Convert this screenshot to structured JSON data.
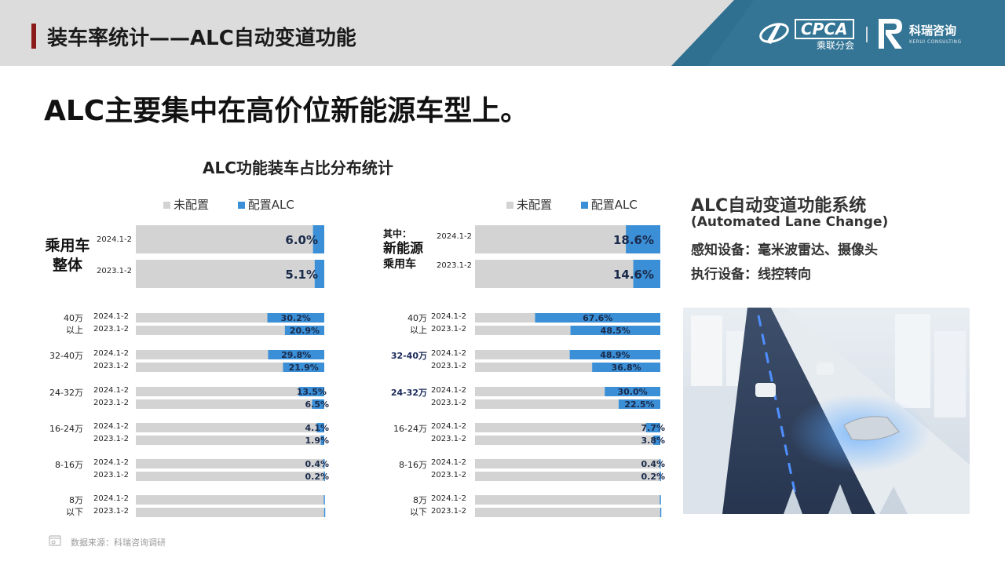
{
  "header": {
    "title": "装车率统计——ALC自动变道功能",
    "logo_cpca": "CPCA",
    "logo_cpca_sub": "乘联分会",
    "logo_kerui": "科瑞咨询",
    "logo_kerui_sub": "KERUI CONSULTING"
  },
  "main_title": "ALC主要集中在高价位新能源车型上。",
  "chart_title": "ALC功能装车占比分布统计",
  "legend": {
    "not_configured": "未配置",
    "configured": "配置ALC"
  },
  "colors": {
    "not_configured": "#d3d3d3",
    "configured": "#3b8fd6",
    "header_bg": "#dcdcdc",
    "header_accent": "#8b1a1a",
    "header_band": "#2f6f8f"
  },
  "chart_data": [
    {
      "type": "bar",
      "orientation": "horizontal-stacked-100",
      "group_label_line1": "乘用车",
      "group_label_line2": "整体",
      "overall": [
        {
          "period": "2024.1-2",
          "value": 6.0,
          "label": "6.0%"
        },
        {
          "period": "2023.1-2",
          "value": 5.1,
          "label": "5.1%"
        }
      ],
      "segments": [
        {
          "line1": "40万",
          "line2": "以上",
          "bars": [
            {
              "period": "2024.1-2",
              "value": 30.2,
              "label": "30.2%"
            },
            {
              "period": "2023.1-2",
              "value": 20.9,
              "label": "20.9%"
            }
          ]
        },
        {
          "line1": "32-40万",
          "line2": "",
          "bars": [
            {
              "period": "2024.1-2",
              "value": 29.8,
              "label": "29.8%"
            },
            {
              "period": "2023.1-2",
              "value": 21.9,
              "label": "21.9%"
            }
          ]
        },
        {
          "line1": "24-32万",
          "line2": "",
          "bars": [
            {
              "period": "2024.1-2",
              "value": 13.5,
              "label": "13.5%"
            },
            {
              "period": "2023.1-2",
              "value": 6.5,
              "label": "6.5%"
            }
          ]
        },
        {
          "line1": "16-24万",
          "line2": "",
          "bars": [
            {
              "period": "2024.1-2",
              "value": 4.1,
              "label": "4.1%"
            },
            {
              "period": "2023.1-2",
              "value": 1.9,
              "label": "1.9%"
            }
          ]
        },
        {
          "line1": "8-16万",
          "line2": "",
          "bars": [
            {
              "period": "2024.1-2",
              "value": 0.4,
              "label": "0.4%"
            },
            {
              "period": "2023.1-2",
              "value": 0.2,
              "label": "0.2%"
            }
          ]
        },
        {
          "line1": "8万",
          "line2": "以下",
          "bars": [
            {
              "period": "2024.1-2",
              "value": 0.3,
              "label": ""
            },
            {
              "period": "2023.1-2",
              "value": 0.1,
              "label": ""
            }
          ]
        }
      ]
    },
    {
      "type": "bar",
      "orientation": "horizontal-stacked-100",
      "group_label_line0": "其中：",
      "group_label_line1": "新能源",
      "group_label_line2": "乘用车",
      "overall": [
        {
          "period": "2024.1-2",
          "value": 18.6,
          "label": "18.6%"
        },
        {
          "period": "2023.1-2",
          "value": 14.6,
          "label": "14.6%"
        }
      ],
      "segments": [
        {
          "line1": "40万",
          "line2": "以上",
          "bars": [
            {
              "period": "2024.1-2",
              "value": 67.6,
              "label": "67.6%"
            },
            {
              "period": "2023.1-2",
              "value": 48.5,
              "label": "48.5%"
            }
          ]
        },
        {
          "line1": "32-40万",
          "line2": "",
          "bars": [
            {
              "period": "2024.1-2",
              "value": 48.9,
              "label": "48.9%"
            },
            {
              "period": "2023.1-2",
              "value": 36.8,
              "label": "36.8%"
            }
          ]
        },
        {
          "line1": "24-32万",
          "line2": "",
          "bars": [
            {
              "period": "2024.1-2",
              "value": 30.0,
              "label": "30.0%"
            },
            {
              "period": "2023.1-2",
              "value": 22.5,
              "label": "22.5%"
            }
          ]
        },
        {
          "line1": "16-24万",
          "line2": "",
          "bars": [
            {
              "period": "2024.1-2",
              "value": 7.7,
              "label": "7.7%"
            },
            {
              "period": "2023.1-2",
              "value": 3.8,
              "label": "3.8%"
            }
          ]
        },
        {
          "line1": "8-16万",
          "line2": "",
          "bars": [
            {
              "period": "2024.1-2",
              "value": 0.4,
              "label": "0.4%"
            },
            {
              "period": "2023.1-2",
              "value": 0.2,
              "label": "0.2%"
            }
          ]
        },
        {
          "line1": "8万",
          "line2": "以下",
          "bars": [
            {
              "period": "2024.1-2",
              "value": 0.3,
              "label": ""
            },
            {
              "period": "2023.1-2",
              "value": 0.1,
              "label": ""
            }
          ]
        }
      ]
    }
  ],
  "right_panel": {
    "title": "ALC自动变道功能系统",
    "subtitle": "(Automated Lane Change)",
    "sensing": "感知设备：毫米波雷达、摄像头",
    "actuation": "执行设备：线控转向"
  },
  "source": "数据来源：科瑞咨询调研"
}
